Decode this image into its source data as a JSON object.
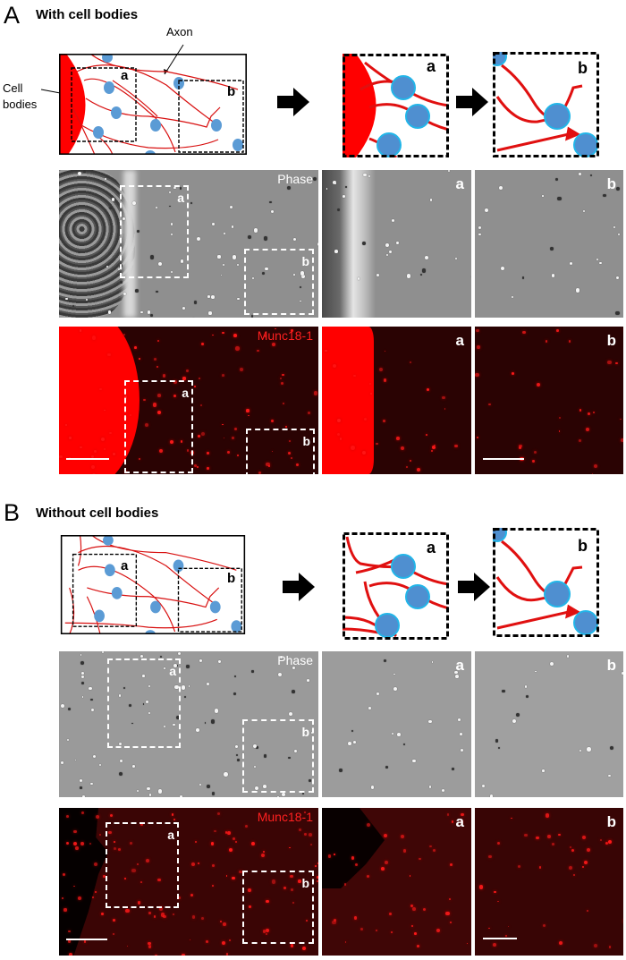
{
  "sections": [
    {
      "letter": "A",
      "title": "With cell bodies",
      "schematic": {
        "axon_label": "Axon",
        "cell_bodies_label": "Cell bodies",
        "box_a": "a",
        "box_b": "b"
      },
      "zoom_a_label": "a",
      "zoom_b_label": "b",
      "phase": {
        "label": "Phase",
        "box_a": "a",
        "box_b": "b",
        "panel_a": "a",
        "panel_b": "b"
      },
      "munc": {
        "label": "Munc18-1",
        "box_a": "a",
        "box_b": "b",
        "panel_a": "a",
        "panel_b": "b"
      }
    },
    {
      "letter": "B",
      "title": "Without cell bodies",
      "schematic": {
        "box_a": "a",
        "box_b": "b"
      },
      "zoom_a_label": "a",
      "zoom_b_label": "b",
      "phase": {
        "label": "Phase",
        "box_a": "a",
        "box_b": "b",
        "panel_a": "a",
        "panel_b": "b"
      },
      "munc": {
        "label": "Munc18-1",
        "box_a": "a",
        "box_b": "b",
        "panel_a": "a",
        "panel_b": "b"
      }
    }
  ],
  "colors": {
    "axon": "#e8100f",
    "cell_body": "#ff0000",
    "synapse_dot": "#5b9bd5",
    "munc_label": "#ff2020",
    "phase_label": "#ffffff"
  }
}
